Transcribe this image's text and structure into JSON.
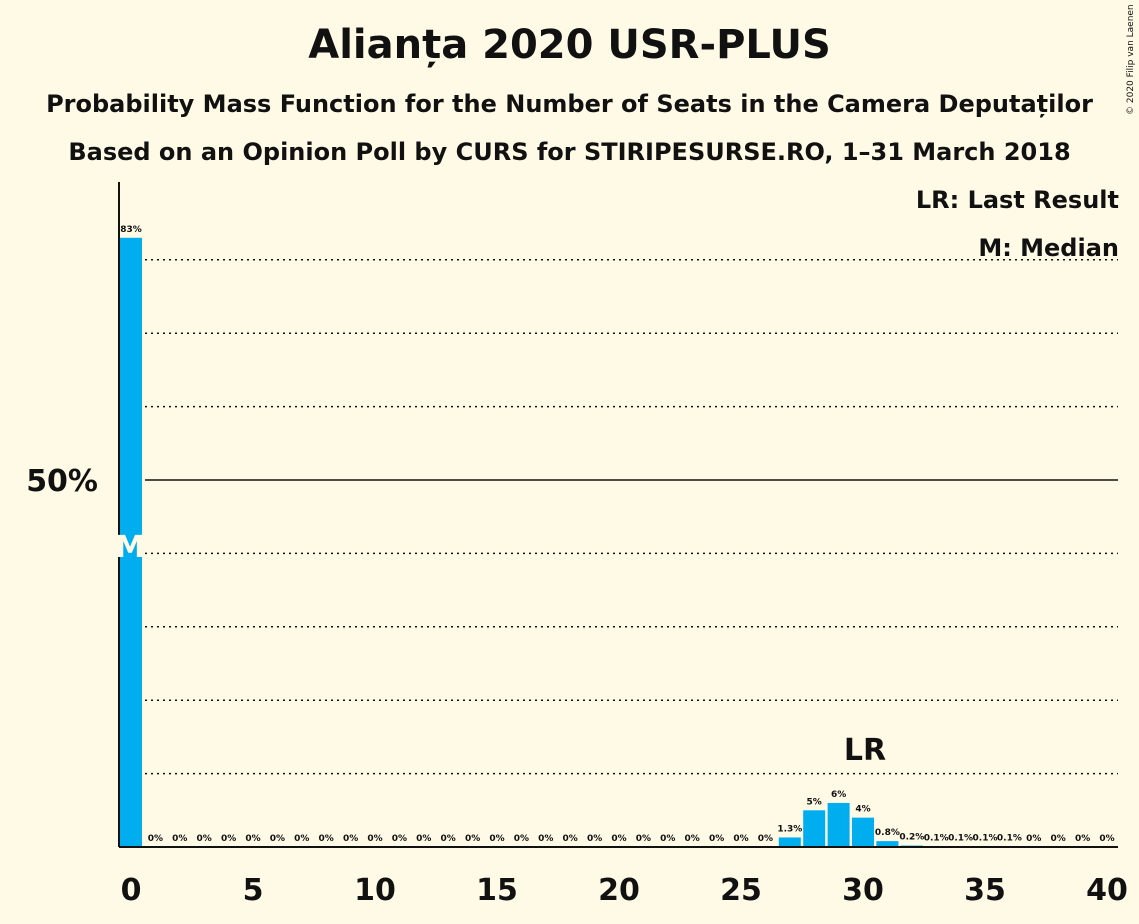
{
  "chart_data": {
    "type": "bar",
    "title": "Alianța 2020 USR-PLUS",
    "subtitle": "Probability Mass Function for the Number of Seats in the Camera Deputaților",
    "subtitle2": "Based on an Opinion Poll by CURS for STIRIPESURSE.RO, 1–31 March 2018",
    "copyright": "© 2020 Filip van Laenen",
    "legend": {
      "last_result": "LR: Last Result",
      "median": "M: Median"
    },
    "x": [
      0,
      1,
      2,
      3,
      4,
      5,
      6,
      7,
      8,
      9,
      10,
      11,
      12,
      13,
      14,
      15,
      16,
      17,
      18,
      19,
      20,
      21,
      22,
      23,
      24,
      25,
      26,
      27,
      28,
      29,
      30,
      31,
      32,
      33,
      34,
      35,
      36,
      37,
      38,
      39,
      40
    ],
    "values": [
      83,
      0,
      0,
      0,
      0,
      0,
      0,
      0,
      0,
      0,
      0,
      0,
      0,
      0,
      0,
      0,
      0,
      0,
      0,
      0,
      0,
      0,
      0,
      0,
      0,
      0,
      0,
      1.3,
      5,
      6,
      4,
      0.8,
      0.2,
      0.1,
      0.1,
      0.1,
      0.1,
      0,
      0,
      0,
      0
    ],
    "value_labels": [
      "83%",
      "0%",
      "0%",
      "0%",
      "0%",
      "0%",
      "0%",
      "0%",
      "0%",
      "0%",
      "0%",
      "0%",
      "0%",
      "0%",
      "0%",
      "0%",
      "0%",
      "0%",
      "0%",
      "0%",
      "0%",
      "0%",
      "0%",
      "0%",
      "0%",
      "0%",
      "0%",
      "1.3%",
      "5%",
      "6%",
      "4%",
      "0.8%",
      "0.2%",
      "0.1%",
      "0.1%",
      "0.1%",
      "0.1%",
      "0%",
      "0%",
      "0%",
      "0%"
    ],
    "xticks": [
      0,
      5,
      10,
      15,
      20,
      25,
      30,
      35,
      40
    ],
    "ytick_label": "50%",
    "ytick_value": 50,
    "ylim": [
      0,
      90
    ],
    "gridlines": [
      10,
      20,
      30,
      40,
      60,
      70,
      80
    ],
    "last_result_seat": 30,
    "last_result_label": "LR",
    "median_seat": 0,
    "median_label": "M",
    "bar_color": "#00AEEF"
  }
}
